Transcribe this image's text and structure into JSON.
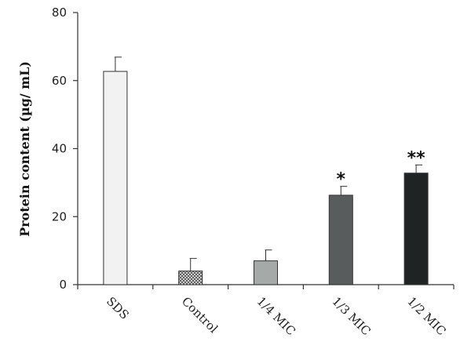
{
  "chart_data": {
    "type": "bar",
    "title": "",
    "xlabel": "",
    "ylabel": "Protein content (µg/ mL)",
    "ylim": [
      0,
      80
    ],
    "yticks": [
      0,
      20,
      40,
      60,
      80
    ],
    "grid": false,
    "categories": [
      "SDS",
      "Control",
      "1/4 MIC",
      "1/3 MIC",
      "1/2 MIC"
    ],
    "values": [
      62.7,
      4.0,
      7.0,
      26.3,
      32.8
    ],
    "errors": [
      4.2,
      3.7,
      3.2,
      2.6,
      2.4
    ],
    "significance": [
      "",
      "",
      "",
      "*",
      "**"
    ],
    "bar_fills": [
      "#f2f2f2",
      "pattern-crosshatch",
      "#a5a9a8",
      "#585c5c",
      "#1f2323"
    ]
  }
}
